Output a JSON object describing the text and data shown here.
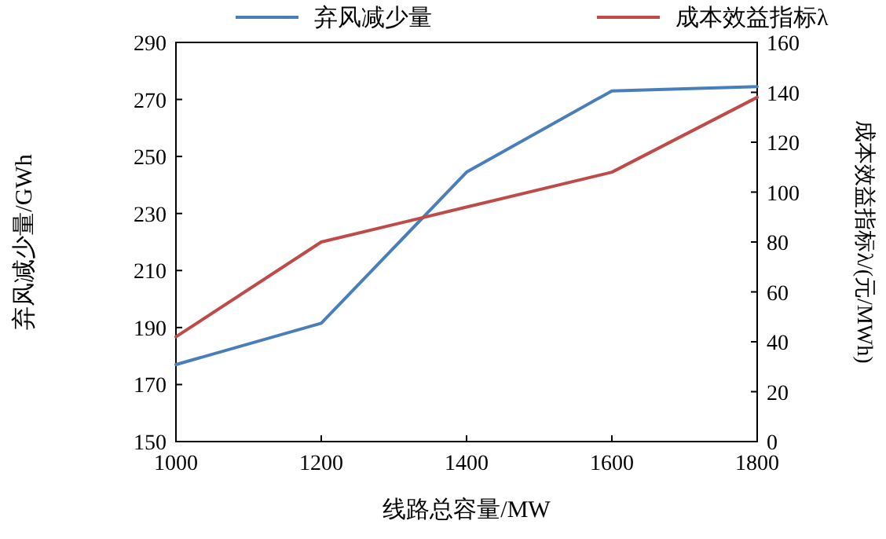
{
  "chart_data": {
    "type": "line",
    "xlabel": "线路总容量/MW",
    "ylabel": "弃风减少量/GWh",
    "y2label": "成本效益指标λ/(元/MWh)",
    "x": [
      1000,
      1200,
      1400,
      1600,
      1800
    ],
    "series": [
      {
        "name": "弃风减少量",
        "color": "#4a7ebb",
        "values": [
          177,
          191.5,
          244.5,
          273,
          274.5
        ]
      },
      {
        "name": "成本效益指标λ",
        "color": "#be4b48",
        "axis": "y2",
        "values": [
          42,
          80,
          94,
          108,
          138
        ]
      }
    ],
    "xlim": [
      1000,
      1800
    ],
    "xticks": [
      1000,
      1200,
      1400,
      1600,
      1800
    ],
    "ylim": [
      150,
      290
    ],
    "yticks": [
      150,
      170,
      190,
      210,
      230,
      250,
      270,
      290
    ],
    "y2lim": [
      0,
      160
    ],
    "y2ticks": [
      0,
      20,
      40,
      60,
      80,
      100,
      120,
      140,
      160
    ],
    "legend": "top",
    "grid": false,
    "marker": "none",
    "line_style": "solid"
  }
}
